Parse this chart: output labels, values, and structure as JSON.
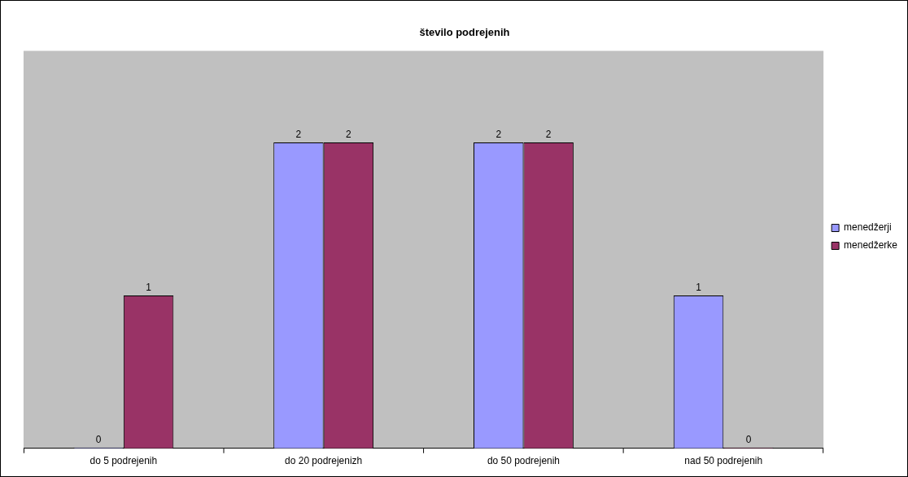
{
  "chart_data": {
    "type": "bar",
    "title": "število podrejenih",
    "categories": [
      "do 5 podrejenih",
      "do 20 podrejenizh",
      "do 50 podrejenih",
      "nad 50 podrejenih"
    ],
    "series": [
      {
        "name": "menedžerji",
        "color": "#9999ff",
        "values": [
          0,
          2,
          2,
          1
        ]
      },
      {
        "name": "menedžerke",
        "color": "#993366",
        "values": [
          1,
          2,
          2,
          0
        ]
      }
    ],
    "ylim": [
      0,
      2.6
    ],
    "tick_labels": "x",
    "grid": false,
    "legend": "right",
    "data_labels": true
  }
}
